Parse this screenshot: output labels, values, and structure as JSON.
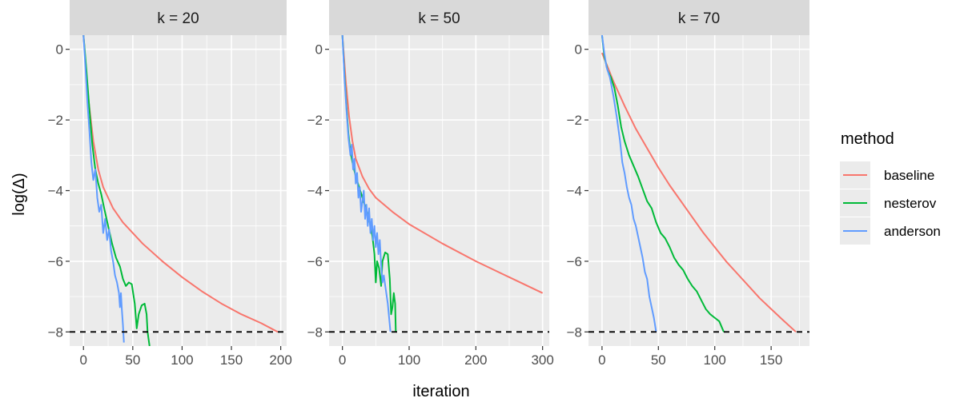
{
  "chart_data": {
    "type": "line",
    "xlabel": "iteration",
    "ylabel": "log(Δ)",
    "legend": {
      "title": "method",
      "placement": "right",
      "items": [
        {
          "name": "baseline",
          "color": "#F8766D"
        },
        {
          "name": "nesterov",
          "color": "#00BA38"
        },
        {
          "name": "anderson",
          "color": "#619CFF"
        }
      ]
    },
    "reference_line": {
      "y": -8,
      "style": "dashed",
      "color": "#000000"
    },
    "ylim": [
      -8.4,
      0.4
    ],
    "y_ticks": [
      0,
      -2,
      -4,
      -6,
      -8
    ],
    "y_tick_labels": [
      "0",
      "−2",
      "−4",
      "−6",
      "−8"
    ],
    "grid": true,
    "panels": [
      {
        "label": "k = 20",
        "xlim": [
          -14,
          206
        ],
        "x_ticks": [
          0,
          50,
          100,
          150,
          200
        ],
        "x_tick_labels": [
          "0",
          "50",
          "100",
          "150",
          "200"
        ],
        "series": [
          {
            "name": "baseline",
            "points": [
              [
                0,
                0.4
              ],
              [
                5,
                -1.4
              ],
              [
                10,
                -2.6
              ],
              [
                15,
                -3.4
              ],
              [
                20,
                -3.9
              ],
              [
                30,
                -4.5
              ],
              [
                40,
                -4.9
              ],
              [
                50,
                -5.2
              ],
              [
                60,
                -5.5
              ],
              [
                80,
                -6.0
              ],
              [
                100,
                -6.45
              ],
              [
                120,
                -6.85
              ],
              [
                140,
                -7.2
              ],
              [
                160,
                -7.5
              ],
              [
                180,
                -7.75
              ],
              [
                197,
                -8.0
              ]
            ]
          },
          {
            "name": "nesterov",
            "points": [
              [
                0,
                0.4
              ],
              [
                3,
                -0.6
              ],
              [
                6,
                -1.7
              ],
              [
                9,
                -2.7
              ],
              [
                12,
                -3.4
              ],
              [
                15,
                -3.8
              ],
              [
                18,
                -4.1
              ],
              [
                21,
                -4.5
              ],
              [
                25,
                -5.0
              ],
              [
                29,
                -5.5
              ],
              [
                33,
                -5.9
              ],
              [
                37,
                -6.15
              ],
              [
                40,
                -6.5
              ],
              [
                43,
                -6.7
              ],
              [
                46,
                -6.6
              ],
              [
                49,
                -6.65
              ],
              [
                52,
                -7.2
              ],
              [
                54,
                -7.9
              ],
              [
                56,
                -7.5
              ],
              [
                59,
                -7.25
              ],
              [
                62,
                -7.2
              ],
              [
                64,
                -7.5
              ],
              [
                65,
                -8.0
              ],
              [
                67,
                -8.4
              ]
            ]
          },
          {
            "name": "anderson",
            "points": [
              [
                0,
                0.4
              ],
              [
                2,
                -0.5
              ],
              [
                4,
                -1.5
              ],
              [
                6,
                -2.3
              ],
              [
                8,
                -3.2
              ],
              [
                10,
                -3.7
              ],
              [
                12,
                -3.4
              ],
              [
                14,
                -4.2
              ],
              [
                16,
                -4.6
              ],
              [
                18,
                -4.4
              ],
              [
                20,
                -5.2
              ],
              [
                22,
                -4.8
              ],
              [
                24,
                -5.4
              ],
              [
                26,
                -5.1
              ],
              [
                28,
                -5.7
              ],
              [
                30,
                -6.0
              ],
              [
                32,
                -6.4
              ],
              [
                34,
                -6.6
              ],
              [
                36,
                -6.9
              ],
              [
                37,
                -7.3
              ],
              [
                38,
                -6.9
              ],
              [
                39,
                -7.4
              ],
              [
                40,
                -7.8
              ],
              [
                41,
                -8.3
              ]
            ]
          }
        ]
      },
      {
        "label": "k = 50",
        "xlim": [
          -20,
          310
        ],
        "x_ticks": [
          0,
          100,
          200,
          300
        ],
        "x_tick_labels": [
          "0",
          "100",
          "200",
          "300"
        ],
        "series": [
          {
            "name": "baseline",
            "points": [
              [
                0,
                0.4
              ],
              [
                5,
                -0.9
              ],
              [
                10,
                -1.9
              ],
              [
                15,
                -2.6
              ],
              [
                20,
                -3.1
              ],
              [
                30,
                -3.6
              ],
              [
                40,
                -3.95
              ],
              [
                50,
                -4.2
              ],
              [
                75,
                -4.6
              ],
              [
                100,
                -4.95
              ],
              [
                150,
                -5.5
              ],
              [
                200,
                -6.0
              ],
              [
                250,
                -6.45
              ],
              [
                300,
                -6.9
              ]
            ]
          },
          {
            "name": "nesterov",
            "points": [
              [
                0,
                0.4
              ],
              [
                3,
                -0.7
              ],
              [
                6,
                -1.6
              ],
              [
                9,
                -2.4
              ],
              [
                12,
                -2.9
              ],
              [
                15,
                -3.2
              ],
              [
                20,
                -3.6
              ],
              [
                25,
                -3.9
              ],
              [
                30,
                -4.2
              ],
              [
                35,
                -4.5
              ],
              [
                40,
                -4.8
              ],
              [
                45,
                -5.3
              ],
              [
                48,
                -5.8
              ],
              [
                50,
                -6.6
              ],
              [
                52,
                -6.0
              ],
              [
                55,
                -6.2
              ],
              [
                58,
                -6.7
              ],
              [
                60,
                -6.0
              ],
              [
                64,
                -5.75
              ],
              [
                68,
                -5.8
              ],
              [
                71,
                -6.5
              ],
              [
                73,
                -7.5
              ],
              [
                75,
                -7.3
              ],
              [
                77,
                -6.9
              ],
              [
                79,
                -7.2
              ],
              [
                80,
                -8.0
              ]
            ]
          },
          {
            "name": "anderson",
            "points": [
              [
                0,
                0.4
              ],
              [
                3,
                -0.8
              ],
              [
                6,
                -1.7
              ],
              [
                9,
                -2.5
              ],
              [
                12,
                -3.0
              ],
              [
                14,
                -2.7
              ],
              [
                16,
                -3.4
              ],
              [
                18,
                -3.1
              ],
              [
                20,
                -3.8
              ],
              [
                22,
                -3.5
              ],
              [
                24,
                -4.2
              ],
              [
                26,
                -3.9
              ],
              [
                28,
                -4.6
              ],
              [
                30,
                -4.3
              ],
              [
                32,
                -4.0
              ],
              [
                34,
                -4.8
              ],
              [
                36,
                -4.4
              ],
              [
                38,
                -5.0
              ],
              [
                40,
                -4.5
              ],
              [
                42,
                -5.2
              ],
              [
                44,
                -4.8
              ],
              [
                46,
                -5.4
              ],
              [
                48,
                -5.0
              ],
              [
                50,
                -5.6
              ],
              [
                52,
                -5.2
              ],
              [
                54,
                -5.8
              ],
              [
                56,
                -5.4
              ],
              [
                58,
                -6.1
              ],
              [
                60,
                -6.6
              ],
              [
                62,
                -6.4
              ],
              [
                65,
                -6.8
              ],
              [
                68,
                -7.2
              ],
              [
                70,
                -7.6
              ],
              [
                72,
                -8.0
              ]
            ]
          }
        ]
      },
      {
        "label": "k = 70",
        "xlim": [
          -12,
          184
        ],
        "x_ticks": [
          0,
          50,
          100,
          150
        ],
        "x_tick_labels": [
          "0",
          "50",
          "100",
          "150"
        ],
        "series": [
          {
            "name": "baseline",
            "points": [
              [
                0,
                -0.1
              ],
              [
                10,
                -0.9
              ],
              [
                20,
                -1.6
              ],
              [
                30,
                -2.25
              ],
              [
                40,
                -2.8
              ],
              [
                50,
                -3.35
              ],
              [
                60,
                -3.85
              ],
              [
                70,
                -4.3
              ],
              [
                80,
                -4.75
              ],
              [
                90,
                -5.2
              ],
              [
                100,
                -5.6
              ],
              [
                110,
                -6.0
              ],
              [
                120,
                -6.35
              ],
              [
                130,
                -6.7
              ],
              [
                140,
                -7.05
              ],
              [
                150,
                -7.35
              ],
              [
                160,
                -7.65
              ],
              [
                172,
                -8.0
              ]
            ]
          },
          {
            "name": "nesterov",
            "points": [
              [
                0,
                0.4
              ],
              [
                2,
                -0.2
              ],
              [
                5,
                -0.6
              ],
              [
                8,
                -0.8
              ],
              [
                11,
                -1.1
              ],
              [
                14,
                -1.6
              ],
              [
                17,
                -2.2
              ],
              [
                20,
                -2.6
              ],
              [
                24,
                -3.0
              ],
              [
                28,
                -3.3
              ],
              [
                32,
                -3.6
              ],
              [
                36,
                -3.95
              ],
              [
                40,
                -4.3
              ],
              [
                44,
                -4.5
              ],
              [
                48,
                -4.9
              ],
              [
                52,
                -5.2
              ],
              [
                56,
                -5.35
              ],
              [
                60,
                -5.6
              ],
              [
                64,
                -5.9
              ],
              [
                68,
                -6.1
              ],
              [
                72,
                -6.25
              ],
              [
                76,
                -6.5
              ],
              [
                80,
                -6.7
              ],
              [
                84,
                -6.85
              ],
              [
                88,
                -7.1
              ],
              [
                92,
                -7.35
              ],
              [
                96,
                -7.5
              ],
              [
                100,
                -7.6
              ],
              [
                104,
                -7.7
              ],
              [
                108,
                -8.0
              ]
            ]
          },
          {
            "name": "anderson",
            "points": [
              [
                0,
                0.4
              ],
              [
                2,
                -0.1
              ],
              [
                4,
                -0.5
              ],
              [
                7,
                -0.8
              ],
              [
                10,
                -1.3
              ],
              [
                13,
                -1.9
              ],
              [
                16,
                -2.6
              ],
              [
                18,
                -3.2
              ],
              [
                20,
                -3.5
              ],
              [
                22,
                -3.9
              ],
              [
                24,
                -4.2
              ],
              [
                26,
                -4.4
              ],
              [
                28,
                -4.8
              ],
              [
                30,
                -5.0
              ],
              [
                32,
                -5.3
              ],
              [
                34,
                -5.6
              ],
              [
                36,
                -5.9
              ],
              [
                38,
                -6.3
              ],
              [
                40,
                -6.5
              ],
              [
                42,
                -7.0
              ],
              [
                44,
                -7.3
              ],
              [
                46,
                -7.6
              ],
              [
                48,
                -8.0
              ]
            ]
          }
        ]
      }
    ]
  }
}
